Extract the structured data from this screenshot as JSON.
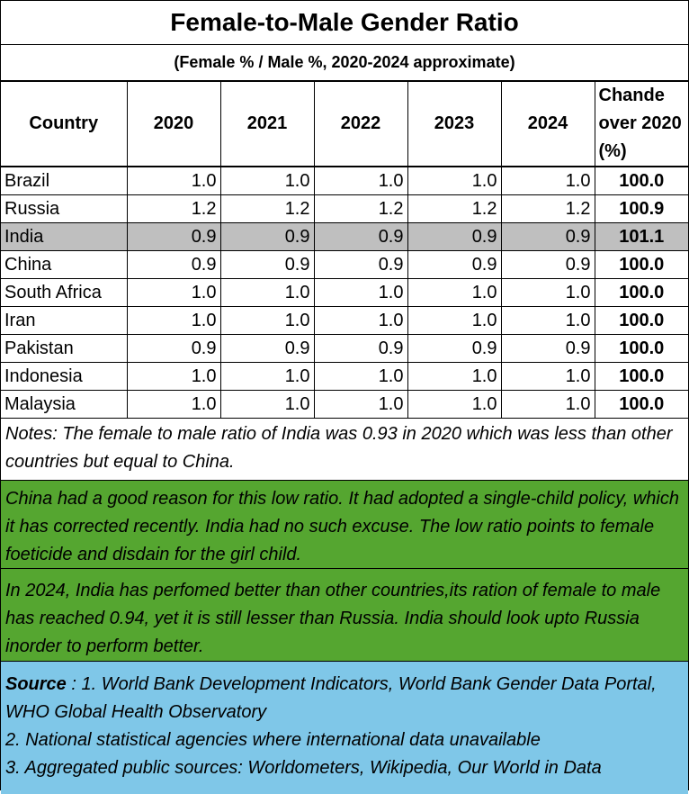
{
  "title": "Female-to-Male Gender Ratio",
  "subtitle": "(Female % / Male %, 2020-2024 approximate)",
  "table": {
    "headers": {
      "country": "Country",
      "y2020": "2020",
      "y2021": "2021",
      "y2022": "2022",
      "y2023": "2023",
      "y2024": "2024",
      "change": "Chande over 2020 (%)"
    },
    "rows": [
      {
        "country": "Brazil",
        "v": [
          "1.0",
          "1.0",
          "1.0",
          "1.0",
          "1.0"
        ],
        "change": "100.0"
      },
      {
        "country": "Russia",
        "v": [
          "1.2",
          "1.2",
          "1.2",
          "1.2",
          "1.2"
        ],
        "change": "100.9"
      },
      {
        "country": "India",
        "v": [
          "0.9",
          "0.9",
          "0.9",
          "0.9",
          "0.9"
        ],
        "change": "101.1"
      },
      {
        "country": "China",
        "v": [
          "0.9",
          "0.9",
          "0.9",
          "0.9",
          "0.9"
        ],
        "change": "100.0"
      },
      {
        "country": "South Africa",
        "v": [
          "1.0",
          "1.0",
          "1.0",
          "1.0",
          "1.0"
        ],
        "change": "100.0"
      },
      {
        "country": "Iran",
        "v": [
          "1.0",
          "1.0",
          "1.0",
          "1.0",
          "1.0"
        ],
        "change": "100.0"
      },
      {
        "country": "Pakistan",
        "v": [
          "0.9",
          "0.9",
          "0.9",
          "0.9",
          "0.9"
        ],
        "change": "100.0"
      },
      {
        "country": "Indonesia",
        "v": [
          "1.0",
          "1.0",
          "1.0",
          "1.0",
          "1.0"
        ],
        "change": "100.0"
      },
      {
        "country": "Malaysia",
        "v": [
          "1.0",
          "1.0",
          "1.0",
          "1.0",
          "1.0"
        ],
        "change": "100.0"
      }
    ]
  },
  "notes": {
    "note1": "Notes: The female to male ratio of India was 0.93 in 2020 which was less than other countries but equal to China.",
    "note2": "China had a good reason for this low ratio.  It had adopted a single-child policy, which it has corrected recently.  India had no such excuse. The low ratio points to female foeticide and disdain for the girl child.",
    "note3": "In 2024, India has perfomed better than other countries,its ration of female to male has reached 0.94, yet it is still lesser than Russia. India should look upto Russia inorder to perform better.",
    "source_label": "Source",
    "source_line1": " : 1. World Bank Development Indicators, World Bank Gender Data Portal, WHO Global Health Observatory",
    "source_line2": "2. National statistical agencies where international data unavailable",
    "source_line3": "3. Aggregated public sources: Worldometers, Wikipedia, Our World in Data"
  },
  "colors": {
    "highlight_row": "#bfbfbf",
    "green_note": "#55a630",
    "blue_note": "#7fc7e8"
  }
}
